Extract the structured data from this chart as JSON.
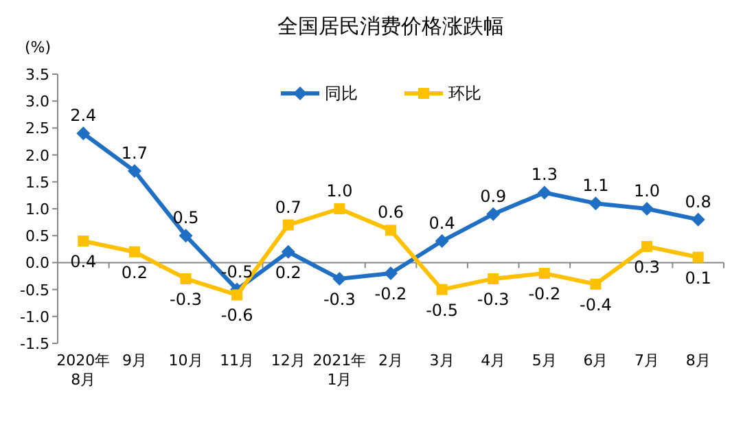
{
  "chart_data": {
    "type": "line",
    "title": "全国居民消费价格涨跌幅",
    "ylabel": "(%)",
    "categories": [
      "2020年\n8月",
      "9月",
      "10月",
      "11月",
      "12月",
      "2021年\n1月",
      "2月",
      "3月",
      "4月",
      "5月",
      "6月",
      "7月",
      "8月"
    ],
    "series": [
      {
        "name": "同比",
        "color": "#1f6fc4",
        "marker": "diamond",
        "values": [
          2.4,
          1.7,
          0.5,
          -0.5,
          0.2,
          -0.3,
          -0.2,
          0.4,
          0.9,
          1.3,
          1.1,
          1.0,
          0.8
        ],
        "value_labels": [
          "2.4",
          "1.7",
          "0.5",
          "-0.5",
          "0.2",
          "-0.3",
          "-0.2",
          "0.4",
          "0.9",
          "1.3",
          "1.1",
          "1.0",
          "0.8"
        ]
      },
      {
        "name": "环比",
        "color": "#ffc000",
        "marker": "square",
        "values": [
          0.4,
          0.2,
          -0.3,
          -0.6,
          0.7,
          1.0,
          0.6,
          -0.5,
          -0.3,
          -0.2,
          -0.4,
          0.3,
          0.1
        ],
        "value_labels": [
          "0.4",
          "0.2",
          "-0.3",
          "-0.6",
          "0.7",
          "1.0",
          "0.6",
          "-0.5",
          "-0.3",
          "-0.2",
          "-0.4",
          "0.3",
          "0.1"
        ]
      }
    ],
    "ylim": [
      -1.5,
      3.5
    ],
    "yticks": [
      {
        "value": -1.5,
        "label": "-1.5"
      },
      {
        "value": -1,
        "label": "-1.0"
      },
      {
        "value": -0.5,
        "label": "-0.5"
      },
      {
        "value": 0,
        "label": "0.0"
      },
      {
        "value": 0.5,
        "label": "0.5"
      },
      {
        "value": 1,
        "label": "1.0"
      },
      {
        "value": 1.5,
        "label": "1.5"
      },
      {
        "value": 2,
        "label": "2.0"
      },
      {
        "value": 2.5,
        "label": "2.5"
      },
      {
        "value": 3,
        "label": "3.0"
      },
      {
        "value": 3.5,
        "label": "3.5"
      }
    ],
    "legend": "top",
    "line_style": "solid"
  }
}
